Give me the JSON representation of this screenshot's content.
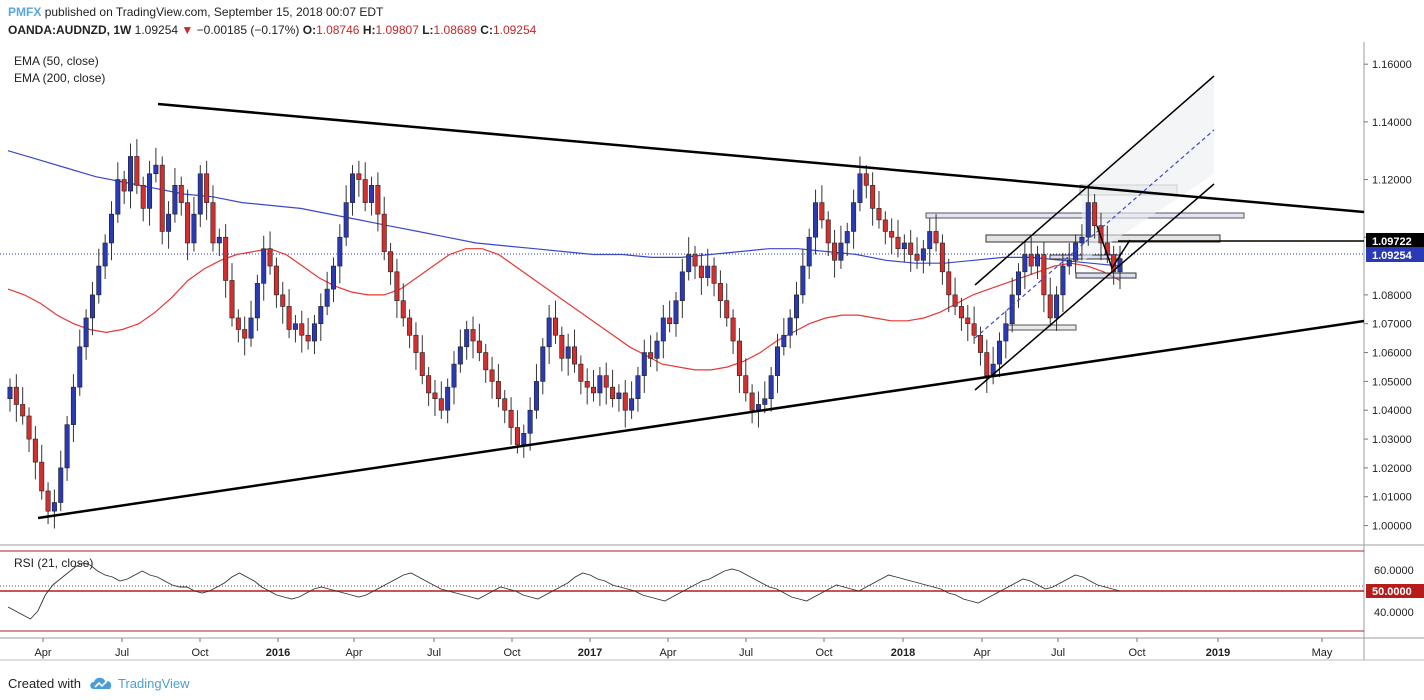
{
  "header": {
    "author": "PMFX",
    "published_text": "published on TradingView.com, September 15, 2018 00:07 EDT",
    "symbol": "OANDA:AUDNZD, 1W",
    "last_price": "1.09254",
    "change_arrow": "▼",
    "change": "−0.00185 (−0.17%)",
    "open_label": "O:",
    "open": "1.08746",
    "high_label": "H:",
    "high": "1.09807",
    "low_label": "L:",
    "low": "1.08689",
    "close_label": "C:",
    "close": "1.09254"
  },
  "indicators": {
    "ema50": "EMA (50, close)",
    "ema200": "EMA (200, close)",
    "rsi": "RSI (21, close)"
  },
  "price_labels": {
    "level_box": "1.09722",
    "last": "1.09254",
    "rsi_mid": "50.0000"
  },
  "colors": {
    "bull": "#2a3ab5",
    "bear": "#d32f2f",
    "ema50": "#e53935",
    "ema200": "#3949cc",
    "trend": "#000000",
    "rsi_line": "#333333",
    "rsi_band": "#b71c1c",
    "last_line": "#2a3ab5"
  },
  "chart_data": {
    "type": "candlestick",
    "symbol": "OANDA:AUDNZD",
    "timeframe": "1W",
    "y_axis_ticks": [
      "1.16000",
      "1.14000",
      "1.12000",
      "1.10000",
      "1.08000",
      "1.07000",
      "1.06000",
      "1.05000",
      "1.04000",
      "1.03000",
      "1.02000",
      "1.01000",
      "1.00000"
    ],
    "x_axis_ticks": [
      "Apr",
      "Jul",
      "Oct",
      "2016",
      "Apr",
      "Jul",
      "Oct",
      "2017",
      "Apr",
      "Jul",
      "Oct",
      "2018",
      "Apr",
      "Jul",
      "Oct",
      "2019",
      "May"
    ],
    "rsi_ticks": [
      "60.0000",
      "40.0000"
    ],
    "rsi_levels": [
      70,
      50,
      30
    ],
    "ylim": [
      0.995,
      1.167
    ],
    "close_series": [
      1.048,
      1.042,
      1.038,
      1.03,
      1.022,
      1.012,
      1.005,
      1.008,
      1.02,
      1.035,
      1.048,
      1.062,
      1.072,
      1.08,
      1.09,
      1.098,
      1.108,
      1.12,
      1.116,
      1.128,
      1.118,
      1.11,
      1.122,
      1.125,
      1.102,
      1.108,
      1.118,
      1.112,
      1.098,
      1.108,
      1.122,
      1.112,
      1.098,
      1.1,
      1.085,
      1.072,
      1.068,
      1.065,
      1.072,
      1.084,
      1.096,
      1.09,
      1.08,
      1.076,
      1.068,
      1.07,
      1.066,
      1.064,
      1.07,
      1.076,
      1.082,
      1.09,
      1.1,
      1.112,
      1.122,
      1.12,
      1.112,
      1.118,
      1.108,
      1.095,
      1.088,
      1.078,
      1.072,
      1.066,
      1.06,
      1.052,
      1.046,
      1.044,
      1.04,
      1.048,
      1.056,
      1.062,
      1.068,
      1.064,
      1.06,
      1.054,
      1.05,
      1.044,
      1.04,
      1.034,
      1.028,
      1.032,
      1.04,
      1.05,
      1.062,
      1.072,
      1.066,
      1.058,
      1.062,
      1.056,
      1.05,
      1.048,
      1.046,
      1.052,
      1.048,
      1.044,
      1.046,
      1.04,
      1.044,
      1.052,
      1.06,
      1.058,
      1.064,
      1.072,
      1.07,
      1.078,
      1.088,
      1.094,
      1.09,
      1.086,
      1.09,
      1.084,
      1.078,
      1.072,
      1.064,
      1.052,
      1.046,
      1.04,
      1.042,
      1.044,
      1.052,
      1.062,
      1.066,
      1.072,
      1.08,
      1.09,
      1.1,
      1.112,
      1.106,
      1.098,
      1.092,
      1.098,
      1.102,
      1.112,
      1.122,
      1.118,
      1.11,
      1.106,
      1.102,
      1.1,
      1.096,
      1.098,
      1.094,
      1.092,
      1.096,
      1.102,
      1.098,
      1.088,
      1.08,
      1.076,
      1.072,
      1.07,
      1.066,
      1.06,
      1.052,
      1.056,
      1.064,
      1.07,
      1.08,
      1.088,
      1.094,
      1.09,
      1.094,
      1.08,
      1.072,
      1.08,
      1.09,
      1.092,
      1.098,
      1.1,
      1.112,
      1.104,
      1.098,
      1.094,
      1.088,
      1.09254
    ],
    "ema50_series": [
      1.082,
      1.08,
      1.077,
      1.073,
      1.07,
      1.068,
      1.067,
      1.068,
      1.07,
      1.074,
      1.079,
      1.085,
      1.089,
      1.092,
      1.094,
      1.095,
      1.096,
      1.094,
      1.09,
      1.086,
      1.083,
      1.081,
      1.08,
      1.08,
      1.082,
      1.086,
      1.09,
      1.094,
      1.096,
      1.096,
      1.094,
      1.09,
      1.086,
      1.082,
      1.078,
      1.074,
      1.07,
      1.066,
      1.062,
      1.059,
      1.056,
      1.055,
      1.054,
      1.054,
      1.055,
      1.057,
      1.06,
      1.064,
      1.067,
      1.07,
      1.072,
      1.073,
      1.073,
      1.072,
      1.071,
      1.071,
      1.072,
      1.074,
      1.077,
      1.08,
      1.082,
      1.084,
      1.086,
      1.088,
      1.09,
      1.091,
      1.09,
      1.088,
      1.085
    ],
    "ema200_series": [
      1.13,
      1.127,
      1.124,
      1.121,
      1.119,
      1.117,
      1.115,
      1.114,
      1.112,
      1.111,
      1.11,
      1.108,
      1.106,
      1.104,
      1.102,
      1.1,
      1.098,
      1.097,
      1.096,
      1.095,
      1.094,
      1.094,
      1.093,
      1.093,
      1.094,
      1.095,
      1.096,
      1.096,
      1.095,
      1.094,
      1.092,
      1.091,
      1.091,
      1.092,
      1.093,
      1.093,
      1.092,
      1.091,
      1.09
    ],
    "rsi_series": [
      42,
      40,
      38,
      36,
      40,
      48,
      53,
      56,
      59,
      62,
      64,
      63,
      60,
      58,
      57,
      55,
      56,
      58,
      60,
      58,
      57,
      55,
      53,
      52,
      52,
      50,
      49,
      50,
      52,
      54,
      57,
      59,
      57,
      55,
      52,
      50,
      48,
      47,
      46,
      47,
      49,
      51,
      52,
      51,
      50,
      49,
      48,
      47,
      48,
      50,
      52,
      54,
      56,
      58,
      59,
      57,
      55,
      53,
      51,
      50,
      49,
      48,
      47,
      46,
      48,
      50,
      52,
      51,
      50,
      48,
      47,
      46,
      48,
      50,
      52,
      54,
      57,
      59,
      58,
      56,
      55,
      53,
      52,
      51,
      50,
      48,
      47,
      46,
      45,
      47,
      49,
      51,
      53,
      55,
      56,
      58,
      60,
      61,
      60,
      58,
      56,
      54,
      52,
      51,
      49,
      47,
      46,
      45,
      47,
      49,
      51,
      53,
      52,
      51,
      50,
      52,
      54,
      56,
      58,
      57,
      56,
      55,
      54,
      53,
      52,
      51,
      49,
      48,
      46,
      45,
      44,
      46,
      48,
      50,
      52,
      54,
      56,
      55,
      53,
      51,
      52,
      54,
      56,
      58,
      57,
      55,
      53,
      52,
      51,
      50
    ]
  },
  "footer": {
    "created_with": "Created with",
    "brand": "TradingView"
  }
}
